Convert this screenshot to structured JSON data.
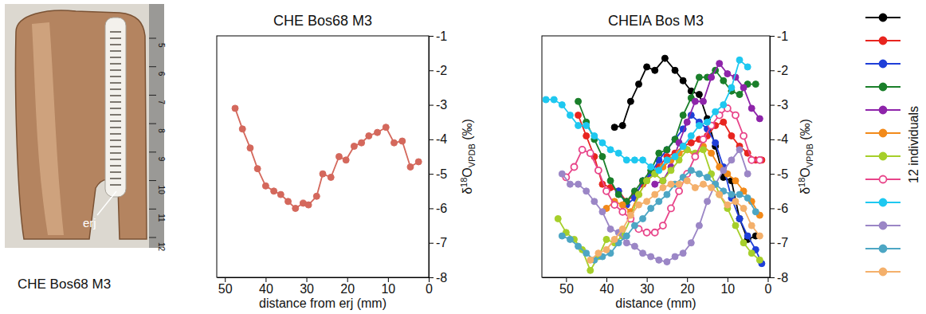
{
  "photo": {
    "caption": "CHE Bos68 M3",
    "annotation": "erj",
    "ruler_labels": [
      5,
      6,
      7,
      8,
      9,
      10,
      11,
      12
    ]
  },
  "chart_data": [
    {
      "type": "line",
      "title": "CHE Bos68 M3",
      "x_label": "distance from erj (mm)",
      "y_label": "δ18OVPDB (‰)",
      "x": [
        47.5,
        45.7,
        43.8,
        42,
        40,
        38,
        36.3,
        34.5,
        32.7,
        30.8,
        29.5,
        27.5,
        26,
        24,
        22,
        20.3,
        18.3,
        16.5,
        14.7,
        12.6,
        10.5,
        8.5,
        6.5,
        4.5,
        2.5
      ],
      "values": [
        -3.1,
        -3.7,
        -4.25,
        -4.85,
        -5.35,
        -5.5,
        -5.6,
        -5.8,
        -6.0,
        -5.85,
        -5.9,
        -5.65,
        -5.0,
        -5.1,
        -4.5,
        -4.6,
        -4.2,
        -4.1,
        -3.9,
        -3.8,
        -3.65,
        -4.1,
        -4.05,
        -4.8,
        -4.65
      ],
      "color": "#d4685c",
      "marker": "circle",
      "xlim": [
        52,
        0
      ],
      "xticks": [
        50,
        40,
        30,
        20,
        10,
        0
      ],
      "ylim": [
        -8,
        -1
      ],
      "yticks": [
        -1,
        -2,
        -3,
        -4,
        -5,
        -6,
        -7,
        -8
      ]
    },
    {
      "type": "line",
      "title": "CHEIA Bos M3",
      "x_label": "distance (mm)",
      "y_label": "δ18OVPDB (‰)",
      "legend_title": "12 individuals",
      "legend": "right",
      "xlim": [
        56,
        -0.5
      ],
      "xticks": [
        50,
        40,
        30,
        20,
        10,
        0
      ],
      "ylim": [
        -8,
        -1
      ],
      "yticks": [
        -1,
        -2,
        -3,
        -4,
        -5,
        -6,
        -7,
        -8
      ],
      "series": [
        {
          "color": "#000000",
          "marker": "circle",
          "x": [
            38,
            36,
            34,
            32,
            30,
            28,
            25.5,
            23,
            21,
            19,
            17,
            15,
            13,
            11,
            9,
            7,
            5,
            3
          ],
          "values": [
            -3.65,
            -3.6,
            -2.9,
            -2.4,
            -1.9,
            -2.0,
            -1.65,
            -2.0,
            -2.3,
            -2.6,
            -2.7,
            -3.4,
            -4.2,
            -5.1,
            -5.2,
            -6.3,
            -6.9,
            -6.8
          ]
        },
        {
          "color": "#e8251f",
          "marker": "circle",
          "x": [
            47,
            45,
            43,
            41,
            39,
            37,
            35,
            33,
            31,
            29,
            27,
            25,
            23,
            21,
            19,
            17,
            15,
            13,
            11,
            9,
            7,
            5,
            3,
            1.5
          ],
          "values": [
            -3.3,
            -3.9,
            -4.5,
            -5.3,
            -5.4,
            -5.5,
            -5.8,
            -5.6,
            -5.3,
            -5.0,
            -4.8,
            -4.5,
            -4.4,
            -4.2,
            -4.1,
            -4.0,
            -3.9,
            -3.6,
            -3.5,
            -3.9,
            -4.2,
            -4.4,
            -4.6,
            -4.6
          ]
        },
        {
          "color": "#1f3fd8",
          "marker": "circle",
          "x": [
            37,
            35,
            33,
            31,
            29,
            27,
            25,
            23,
            21,
            19,
            17,
            15,
            13,
            11,
            9,
            7,
            5,
            3,
            1.5
          ],
          "values": [
            -5.5,
            -5.9,
            -5.7,
            -5.2,
            -5.0,
            -4.6,
            -4.3,
            -4.0,
            -3.7,
            -3.3,
            -3.5,
            -3.7,
            -4.1,
            -4.8,
            -5.7,
            -6.3,
            -6.8,
            -7.2,
            -7.6
          ]
        },
        {
          "color": "#1a7f2a",
          "marker": "circle",
          "x": [
            47,
            45,
            43,
            41,
            39,
            37,
            35,
            33,
            31,
            29,
            27,
            25,
            23,
            21,
            19,
            17,
            15,
            13,
            11,
            9,
            7,
            5,
            3
          ],
          "values": [
            -2.9,
            -3.5,
            -4.0,
            -4.5,
            -5.2,
            -5.6,
            -5.8,
            -5.5,
            -5.2,
            -4.9,
            -4.4,
            -4.3,
            -4.0,
            -3.3,
            -2.8,
            -2.2,
            -2.2,
            -2.0,
            -2.3,
            -2.6,
            -2.7,
            -2.4,
            -2.4
          ]
        },
        {
          "color": "#8e24aa",
          "marker": "circle",
          "x": [
            28,
            26,
            24,
            22,
            20,
            18,
            16,
            14,
            12,
            10,
            8,
            6,
            4,
            2
          ],
          "values": [
            -5.3,
            -5.2,
            -4.8,
            -4.1,
            -3.5,
            -2.9,
            -2.9,
            -2.2,
            -1.8,
            -2.1,
            -2.2,
            -2.5,
            -3.1,
            -3.4
          ]
        },
        {
          "color": "#f28a1a",
          "marker": "circle",
          "x": [
            40,
            38,
            36,
            34,
            32,
            30,
            28,
            26,
            24,
            22,
            20,
            18,
            16,
            14,
            12,
            10,
            8,
            6,
            4,
            2
          ],
          "values": [
            -6.0,
            -5.8,
            -5.9,
            -6.1,
            -5.6,
            -5.2,
            -5.0,
            -4.8,
            -4.6,
            -4.4,
            -4.3,
            -4.5,
            -4.2,
            -4.4,
            -4.8,
            -5.0,
            -5.2,
            -5.5,
            -5.8,
            -6.2
          ]
        },
        {
          "color": "#a6cf2a",
          "marker": "circle",
          "x": [
            52,
            50,
            48,
            46,
            44,
            42,
            40,
            38,
            36,
            34,
            32,
            30,
            28,
            26,
            24,
            22,
            20,
            18,
            16,
            14,
            12,
            10,
            8,
            6,
            4,
            2
          ],
          "values": [
            -6.3,
            -6.7,
            -6.9,
            -7.2,
            -7.8,
            -7.4,
            -6.9,
            -7.0,
            -6.8,
            -6.3,
            -5.6,
            -5.2,
            -5.0,
            -5.2,
            -4.9,
            -4.6,
            -4.3,
            -4.4,
            -4.3,
            -5.0,
            -5.6,
            -6.0,
            -6.5,
            -7.0,
            -7.3,
            -7.5
          ]
        },
        {
          "color": "#e8458a",
          "marker": "open_circle",
          "x": [
            50,
            48,
            46,
            44,
            42,
            40,
            38,
            36,
            34,
            32,
            30,
            28,
            26,
            24,
            22,
            20,
            18,
            16,
            14,
            12,
            10,
            8,
            6,
            4,
            2
          ],
          "values": [
            -5.1,
            -4.8,
            -4.3,
            -4.4,
            -4.9,
            -5.5,
            -5.9,
            -6.1,
            -6.3,
            -6.6,
            -6.7,
            -6.7,
            -6.5,
            -6.0,
            -5.5,
            -5.0,
            -4.5,
            -4.0,
            -3.6,
            -3.3,
            -3.1,
            -3.3,
            -3.9,
            -4.6,
            -4.6
          ]
        },
        {
          "color": "#1ec8f0",
          "marker": "circle",
          "x": [
            55,
            53,
            51,
            49,
            47,
            45,
            43,
            41,
            39,
            37,
            35,
            33,
            31,
            29,
            27,
            25,
            23,
            21,
            19,
            17,
            15,
            13,
            11,
            9,
            7,
            5
          ],
          "values": [
            -2.85,
            -2.85,
            -3.0,
            -3.3,
            -3.6,
            -3.6,
            -3.9,
            -4.1,
            -4.3,
            -4.4,
            -4.6,
            -4.6,
            -4.6,
            -4.8,
            -4.9,
            -4.6,
            -4.5,
            -4.2,
            -3.9,
            -3.6,
            -3.5,
            -3.2,
            -3.0,
            -2.5,
            -1.7,
            -1.9
          ]
        },
        {
          "color": "#9b86c6",
          "marker": "circle",
          "x": [
            51,
            49,
            47,
            45,
            43,
            41,
            39,
            37,
            35,
            33,
            31,
            29,
            27,
            25,
            23,
            21,
            19,
            17,
            15,
            13,
            11,
            9,
            7,
            5
          ],
          "values": [
            -5.0,
            -5.3,
            -5.3,
            -5.5,
            -5.8,
            -6.1,
            -6.6,
            -6.7,
            -7.0,
            -7.1,
            -7.3,
            -7.4,
            -7.5,
            -7.55,
            -7.4,
            -7.3,
            -7.0,
            -6.5,
            -5.8,
            -5.3,
            -4.9,
            -4.6,
            -4.3,
            -5.0
          ]
        },
        {
          "color": "#4da6c4",
          "marker": "circle",
          "x": [
            51,
            49,
            47,
            45,
            43,
            41,
            39,
            37,
            35,
            33,
            31,
            29,
            27,
            25,
            23,
            21,
            19,
            17,
            15,
            13,
            11,
            9,
            7,
            5,
            3
          ],
          "values": [
            -6.8,
            -6.9,
            -7.1,
            -7.3,
            -7.5,
            -7.4,
            -7.3,
            -7.0,
            -6.8,
            -6.5,
            -6.3,
            -6.0,
            -5.8,
            -5.6,
            -5.3,
            -5.1,
            -4.9,
            -5.0,
            -5.1,
            -5.3,
            -5.5,
            -5.6,
            -5.6,
            -5.7,
            -6.1
          ]
        },
        {
          "color": "#f4b06b",
          "marker": "circle",
          "x": [
            44,
            42,
            40,
            38,
            36,
            34,
            32,
            30,
            28,
            26,
            24,
            22,
            20,
            18,
            16,
            14,
            12,
            10,
            8,
            6,
            4,
            2
          ],
          "values": [
            -7.5,
            -7.3,
            -7.2,
            -6.9,
            -6.6,
            -6.2,
            -5.9,
            -5.8,
            -5.6,
            -5.4,
            -5.3,
            -5.3,
            -5.2,
            -5.4,
            -5.3,
            -5.4,
            -5.6,
            -5.9,
            -5.8,
            -6.0,
            -6.5,
            -6.8
          ]
        }
      ]
    }
  ]
}
